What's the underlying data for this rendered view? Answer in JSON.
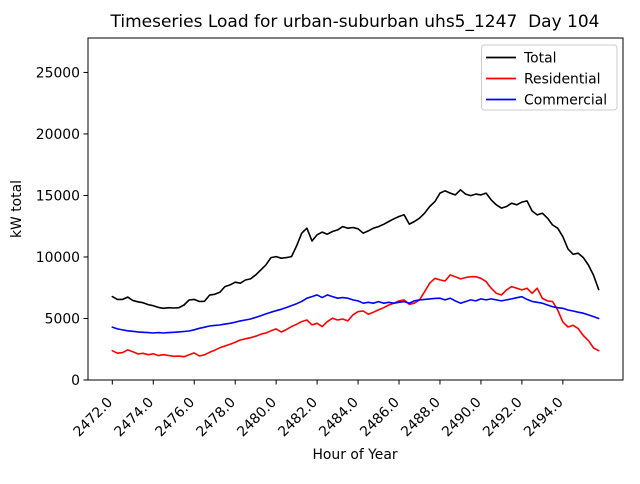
{
  "figure": {
    "background": "#ffffff",
    "spine_color": "#000000",
    "legend_frame_color": "#cccccc"
  },
  "chart_data": {
    "type": "line",
    "title": "Timeseries Load for urban-suburban uhs5_1247  Day 104",
    "xlabel": "Hour of Year",
    "ylabel": "kW total",
    "grid": false,
    "xlim": [
      2470.8125,
      2496.9375
    ],
    "ylim": [
      0,
      27800
    ],
    "xticks": [
      2472,
      2474,
      2476,
      2478,
      2480,
      2482,
      2484,
      2486,
      2488,
      2490,
      2492,
      2494
    ],
    "xtick_labels": [
      "2472.0",
      "2474.0",
      "2476.0",
      "2478.0",
      "2480.0",
      "2482.0",
      "2484.0",
      "2486.0",
      "2488.0",
      "2490.0",
      "2492.0",
      "2494.0"
    ],
    "yticks": [
      0,
      5000,
      10000,
      15000,
      20000,
      25000
    ],
    "ytick_labels": [
      "0",
      "5000",
      "10000",
      "15000",
      "20000",
      "25000"
    ],
    "x_start": 2472.0,
    "x_step": 0.25,
    "x": [
      2472.0,
      2472.25,
      2472.5,
      2472.75,
      2473.0,
      2473.25,
      2473.5,
      2473.75,
      2474.0,
      2474.25,
      2474.5,
      2474.75,
      2475.0,
      2475.25,
      2475.5,
      2475.75,
      2476.0,
      2476.25,
      2476.5,
      2476.75,
      2477.0,
      2477.25,
      2477.5,
      2477.75,
      2478.0,
      2478.25,
      2478.5,
      2478.75,
      2479.0,
      2479.25,
      2479.5,
      2479.75,
      2480.0,
      2480.25,
      2480.5,
      2480.75,
      2481.0,
      2481.25,
      2481.5,
      2481.75,
      2482.0,
      2482.25,
      2482.5,
      2482.75,
      2483.0,
      2483.25,
      2483.5,
      2483.75,
      2484.0,
      2484.25,
      2484.5,
      2484.75,
      2485.0,
      2485.25,
      2485.5,
      2485.75,
      2486.0,
      2486.25,
      2486.5,
      2486.75,
      2487.0,
      2487.25,
      2487.5,
      2487.75,
      2488.0,
      2488.25,
      2488.5,
      2488.75,
      2489.0,
      2489.25,
      2489.5,
      2489.75,
      2490.0,
      2490.25,
      2490.5,
      2490.75,
      2491.0,
      2491.25,
      2491.5,
      2491.75,
      2492.0,
      2492.25,
      2492.5,
      2492.75,
      2493.0,
      2493.25,
      2493.5,
      2493.75,
      2494.0,
      2494.25,
      2494.5,
      2494.75,
      2495.0,
      2495.25,
      2495.5,
      2495.75
    ],
    "series": [
      {
        "name": "Total",
        "color": "#000000",
        "values": [
          6780,
          6550,
          6550,
          6740,
          6460,
          6360,
          6280,
          6130,
          6040,
          5900,
          5830,
          5880,
          5850,
          5880,
          6100,
          6500,
          6550,
          6380,
          6400,
          6900,
          6970,
          7130,
          7590,
          7730,
          7950,
          7870,
          8130,
          8220,
          8540,
          8950,
          9360,
          9950,
          10030,
          9900,
          9950,
          10030,
          10900,
          11930,
          12340,
          11300,
          11800,
          12020,
          11850,
          12070,
          12200,
          12470,
          12340,
          12400,
          12290,
          11930,
          12120,
          12340,
          12470,
          12660,
          12880,
          13100,
          13290,
          13430,
          12670,
          12880,
          13150,
          13560,
          14100,
          14500,
          15190,
          15380,
          15190,
          15050,
          15460,
          15110,
          14990,
          15110,
          15050,
          15190,
          14640,
          14240,
          13970,
          14100,
          14370,
          14240,
          14460,
          14560,
          13740,
          13420,
          13560,
          13150,
          12600,
          12340,
          11660,
          10650,
          10220,
          10310,
          9950,
          9350,
          8500,
          7350
        ]
      },
      {
        "name": "Residential",
        "color": "#ff0000",
        "values": [
          2380,
          2180,
          2230,
          2450,
          2300,
          2120,
          2170,
          2060,
          2130,
          1980,
          2060,
          1990,
          1930,
          1940,
          1890,
          2060,
          2200,
          1950,
          2050,
          2250,
          2420,
          2620,
          2760,
          2900,
          3070,
          3250,
          3350,
          3440,
          3560,
          3720,
          3820,
          4000,
          4150,
          3900,
          4100,
          4350,
          4530,
          4750,
          4880,
          4480,
          4610,
          4340,
          4740,
          5020,
          4880,
          4960,
          4800,
          5290,
          5560,
          5610,
          5350,
          5510,
          5700,
          5880,
          6100,
          6240,
          6430,
          6510,
          6150,
          6240,
          6510,
          7180,
          7870,
          8270,
          8140,
          8050,
          8540,
          8400,
          8220,
          8320,
          8400,
          8400,
          8270,
          8000,
          7460,
          7050,
          6910,
          7320,
          7590,
          7460,
          7320,
          7460,
          7050,
          7460,
          6630,
          6430,
          6380,
          5690,
          4720,
          4310,
          4450,
          4180,
          3620,
          3200,
          2600,
          2380
        ]
      },
      {
        "name": "Commercial",
        "color": "#0000ff",
        "values": [
          4300,
          4150,
          4070,
          4000,
          3960,
          3910,
          3880,
          3850,
          3820,
          3850,
          3820,
          3850,
          3880,
          3910,
          3940,
          3980,
          4080,
          4200,
          4290,
          4390,
          4440,
          4470,
          4540,
          4610,
          4700,
          4800,
          4880,
          4960,
          5090,
          5230,
          5370,
          5510,
          5630,
          5750,
          5890,
          6050,
          6200,
          6390,
          6650,
          6780,
          6920,
          6700,
          6920,
          6780,
          6650,
          6700,
          6650,
          6510,
          6430,
          6240,
          6320,
          6240,
          6370,
          6240,
          6320,
          6240,
          6320,
          6370,
          6240,
          6430,
          6510,
          6550,
          6590,
          6630,
          6650,
          6510,
          6650,
          6430,
          6240,
          6370,
          6510,
          6430,
          6590,
          6510,
          6590,
          6510,
          6430,
          6510,
          6590,
          6690,
          6770,
          6550,
          6390,
          6320,
          6240,
          6100,
          5960,
          5880,
          5830,
          5690,
          5610,
          5510,
          5430,
          5290,
          5150,
          5000
        ]
      }
    ],
    "legend": {
      "position": "upper right",
      "entries": [
        "Total",
        "Residential",
        "Commercial"
      ]
    }
  }
}
